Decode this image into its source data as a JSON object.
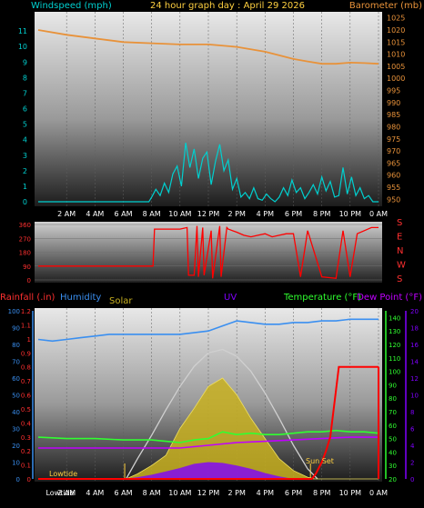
{
  "header": {
    "windspeed_label": "Windspeed (mph)",
    "title": "24 hour graph day : April 29 2026",
    "barometer_label": "Barometer (mb)"
  },
  "labels": {
    "rainfall": "Rainfall (.in)",
    "humidity": "Humidity",
    "solar": "Solar",
    "uv": "UV",
    "temperature": "Temperature (°F)",
    "dewpoint": "Dew Point (°F)",
    "lowtide": "Lowtide",
    "lowtide2": "Lowtide",
    "sunset": "Sun Set"
  },
  "colors": {
    "windspeed": "#00d0d0",
    "barometer": "#e8923a",
    "direction": "#ff0000",
    "rainfall_axis": "#ff3030",
    "humidity": "#3a8ff0",
    "solar": "#c8b020",
    "uv": "#8000ff",
    "temperature": "#30ff30",
    "dewpoint": "#c000ff",
    "title": "#ffd040"
  },
  "chart_data": [
    {
      "type": "line",
      "x_ticks": [
        "2 AM",
        "4 AM",
        "6 AM",
        "8 AM",
        "10 AM",
        "12 PM",
        "2 PM",
        "4 PM",
        "6 PM",
        "8 PM",
        "10 PM",
        "0 AM"
      ],
      "left_axis": {
        "ticks": [
          "0",
          "1",
          "2",
          "3",
          "4",
          "5",
          "6",
          "7",
          "8",
          "9",
          "10",
          "11"
        ],
        "range": [
          0,
          12
        ]
      },
      "right_axis": {
        "ticks": [
          "950",
          "955",
          "960",
          "965",
          "970",
          "975",
          "980",
          "985",
          "990",
          "995",
          "1000",
          "1005",
          "1010",
          "1015",
          "1020",
          "1025"
        ],
        "range": [
          949,
          1026
        ]
      },
      "series": [
        {
          "name": "Windspeed (mph)",
          "hours": [
            0,
            1,
            2,
            3,
            4,
            5,
            6,
            7,
            7.5,
            7.8,
            8,
            8.3,
            8.6,
            8.9,
            9.2,
            9.5,
            9.8,
            10.1,
            10.4,
            10.7,
            11,
            11.3,
            11.6,
            11.9,
            12.2,
            12.5,
            12.8,
            13.1,
            13.4,
            13.7,
            14,
            14.3,
            14.6,
            14.9,
            15.2,
            15.5,
            15.8,
            16.1,
            16.4,
            16.7,
            17,
            17.3,
            17.6,
            17.9,
            18.2,
            18.5,
            18.8,
            19.1,
            19.4,
            19.7,
            20,
            20.3,
            20.6,
            20.9,
            21.2,
            21.5,
            21.8,
            22.1,
            22.4,
            22.7,
            23,
            23.3,
            23.6,
            24
          ],
          "values": [
            0,
            0,
            0,
            0,
            0,
            0,
            0,
            0,
            0,
            0,
            0.3,
            0.8,
            0.4,
            1.2,
            0.6,
            1.8,
            2.3,
            1.0,
            3.8,
            2.2,
            3.4,
            1.5,
            2.8,
            3.2,
            1.1,
            2.6,
            3.7,
            2.0,
            2.7,
            0.8,
            1.5,
            0.3,
            0.6,
            0.2,
            0.9,
            0.2,
            0.1,
            0.5,
            0.2,
            0.0,
            0.3,
            0.9,
            0.4,
            1.4,
            0.6,
            0.9,
            0.2,
            0.6,
            1.1,
            0.5,
            1.6,
            0.7,
            1.3,
            0.3,
            0.4,
            2.2,
            0.5,
            1.6,
            0.4,
            0.9,
            0.2,
            0.4,
            0.0,
            0.0
          ]
        },
        {
          "name": "Barometer (mb)",
          "hours": [
            0,
            2,
            4,
            6,
            8,
            10,
            12,
            14,
            16,
            18,
            19,
            20,
            21,
            22,
            23,
            24
          ],
          "values": [
            1020,
            1018,
            1016.5,
            1015,
            1014.5,
            1014,
            1014,
            1013,
            1011,
            1008,
            1007,
            1006,
            1006,
            1006.5,
            1006.3,
            1006
          ]
        }
      ]
    },
    {
      "type": "line",
      "left_axis": {
        "ticks": [
          "0",
          "90",
          "180",
          "270",
          "360"
        ],
        "range": [
          0,
          360
        ]
      },
      "right_axis": {
        "ticks": [
          "S",
          "E",
          "N",
          "W",
          "S"
        ]
      },
      "series": [
        {
          "name": "Wind Direction",
          "hours": [
            0,
            8.1,
            8.2,
            10,
            10.5,
            10.6,
            11,
            11.2,
            11.3,
            11.6,
            11.7,
            12.2,
            12.3,
            12.8,
            12.9,
            13.3,
            13.4,
            14,
            14.5,
            15,
            15.5,
            16,
            16.5,
            17,
            17.5,
            18,
            18.5,
            19,
            20,
            21,
            21.5,
            22,
            22.5,
            23,
            23.5,
            24
          ],
          "values": [
            90,
            90,
            330,
            330,
            340,
            30,
            30,
            350,
            20,
            340,
            30,
            320,
            10,
            350,
            20,
            340,
            330,
            310,
            290,
            280,
            290,
            300,
            280,
            290,
            300,
            300,
            20,
            320,
            20,
            10,
            320,
            20,
            300,
            320,
            340,
            340
          ]
        }
      ]
    },
    {
      "type": "line",
      "x_ticks": [
        "Lowtide",
        "2 AM",
        "4 AM",
        "6 AM",
        "8 AM",
        "10 AM",
        "12 PM",
        "2 PM",
        "4 PM",
        "6 PM",
        "8 PM",
        "10 PM",
        "0 AM"
      ],
      "left_axis": {
        "ticks": [
          "0",
          "10",
          "20",
          "30",
          "40",
          "50",
          "60",
          "70",
          "80",
          "90",
          "100"
        ],
        "range": [
          0,
          100
        ]
      },
      "rain_axis": {
        "ticks": [
          "0",
          "0.1",
          "0.2",
          "0.3",
          "0.4",
          "0.5",
          "0.6",
          "0.7",
          "0.8",
          "0.9",
          "1",
          "1.1",
          "1.2"
        ],
        "range": [
          0,
          1.2
        ]
      },
      "right_axis": {
        "ticks": [
          "20",
          "30",
          "40",
          "50",
          "60",
          "70",
          "80",
          "90",
          "100",
          "110",
          "120",
          "130",
          "140"
        ],
        "range": [
          20,
          145
        ]
      },
      "uv_axis": {
        "ticks": [
          "0",
          "2",
          "4",
          "6",
          "8",
          "10",
          "12",
          "14",
          "16",
          "18",
          "20"
        ],
        "range": [
          0,
          20
        ]
      },
      "series": [
        {
          "name": "Humidity",
          "hours": [
            0,
            1,
            2,
            3,
            4,
            5,
            6,
            7,
            8,
            9,
            10,
            11,
            12,
            13,
            14,
            15,
            16,
            17,
            18,
            19,
            20,
            21,
            22,
            23,
            24
          ],
          "values": [
            83,
            82,
            83,
            84,
            85,
            86,
            86,
            86,
            86,
            86,
            86,
            87,
            88,
            91,
            94,
            93,
            92,
            92,
            93,
            93,
            94,
            94,
            95,
            95,
            95
          ]
        },
        {
          "name": "Temperature (°F)",
          "hours": [
            0,
            2,
            4,
            6,
            8,
            9,
            10,
            11,
            12,
            13,
            14,
            15,
            16,
            17,
            18,
            19,
            20,
            21,
            22,
            23,
            24
          ],
          "values": [
            51,
            50,
            50,
            49,
            49,
            48,
            47,
            49,
            50,
            55,
            53,
            54,
            53,
            53,
            54,
            55,
            55,
            56,
            55,
            55,
            54
          ]
        },
        {
          "name": "Dew Point (°F)",
          "hours": [
            0,
            2,
            4,
            6,
            8,
            10,
            12,
            14,
            16,
            18,
            20,
            22,
            24
          ],
          "values": [
            43,
            43,
            43,
            43,
            43,
            43,
            45,
            47,
            48,
            49,
            50,
            51,
            51
          ]
        },
        {
          "name": "Rainfall (.in)",
          "hours": [
            0,
            19.3,
            19.6,
            20,
            20.3,
            20.6,
            21.2,
            22,
            24
          ],
          "values": [
            0,
            0,
            0.04,
            0.12,
            0.2,
            0.3,
            0.8,
            0.8,
            0.8
          ]
        },
        {
          "name": "UV",
          "hours": [
            0,
            6,
            7,
            8,
            9,
            10,
            11,
            12,
            13,
            14,
            15,
            16,
            17,
            18,
            24
          ],
          "values": [
            0,
            0,
            0.2,
            0.5,
            0.9,
            1.3,
            1.8,
            2.0,
            1.9,
            1.6,
            1.2,
            0.7,
            0.3,
            0,
            0
          ]
        },
        {
          "name": "Solar",
          "hours": [
            0,
            6.2,
            7,
            8,
            9,
            10,
            11,
            12,
            13,
            14,
            15,
            16,
            17,
            18,
            19,
            19.5,
            24
          ],
          "values": [
            0,
            0,
            3,
            8,
            14,
            30,
            42,
            55,
            60,
            50,
            36,
            24,
            12,
            5,
            1,
            0,
            0
          ]
        },
        {
          "name": "Solar max",
          "hours": [
            6.2,
            7,
            8,
            9,
            10,
            11,
            12,
            13,
            14,
            15,
            16,
            17,
            18,
            19,
            19.7
          ],
          "values": [
            0,
            12,
            26,
            41,
            55,
            67,
            75,
            77,
            73,
            64,
            51,
            36,
            20,
            6,
            0
          ]
        }
      ]
    }
  ]
}
